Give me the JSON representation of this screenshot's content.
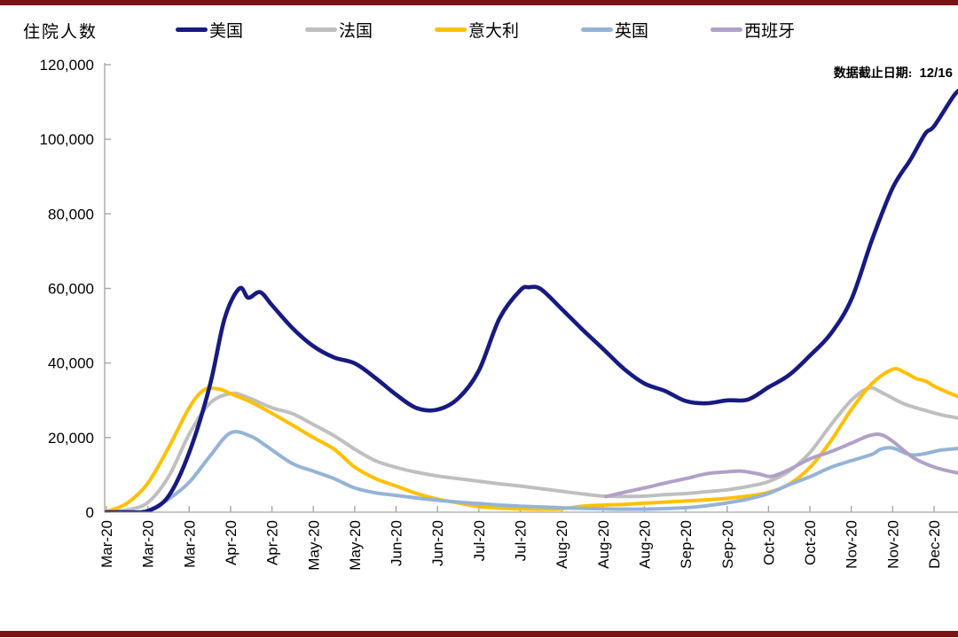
{
  "page": {
    "title": "住院人数",
    "accent_bar_color": "#7a1316"
  },
  "note": {
    "label": "数据截止日期:",
    "value": "12/16"
  },
  "colors": {
    "axis": "#b3b3b3",
    "tick": "#a6a6a6",
    "text": "#000000"
  },
  "chart_data": {
    "type": "line",
    "title": "住院人数",
    "xlabel": "",
    "ylabel": "住院人数",
    "legend_position": "top",
    "grid": false,
    "x_unit": "days since 2020-03-01, ticks every 14 days",
    "ylim": [
      0,
      120000
    ],
    "y_tick_labels": [
      "0",
      "20,000",
      "40,000",
      "60,000",
      "80,000",
      "100,000",
      "120,000"
    ],
    "x_tick_labels": [
      "Mar-20",
      "Mar-20",
      "Mar-20",
      "Apr-20",
      "Apr-20",
      "May-20",
      "May-20",
      "Jun-20",
      "Jun-20",
      "Jul-20",
      "Jul-20",
      "Aug-20",
      "Aug-20",
      "Aug-20",
      "Sep-20",
      "Sep-20",
      "Oct-20",
      "Oct-20",
      "Nov-20",
      "Nov-20",
      "Dec-20"
    ],
    "x_tick_days": [
      0,
      14,
      28,
      42,
      56,
      70,
      84,
      98,
      112,
      126,
      140,
      154,
      168,
      182,
      196,
      210,
      224,
      238,
      252,
      266,
      280
    ],
    "data_cutoff": "12/16",
    "series": [
      {
        "key": "usa",
        "name": "美国",
        "color": "#171a80",
        "points": [
          [
            0,
            0
          ],
          [
            7,
            0
          ],
          [
            14,
            300
          ],
          [
            21,
            4300
          ],
          [
            28,
            16000
          ],
          [
            35,
            34000
          ],
          [
            40,
            52000
          ],
          [
            45,
            60000
          ],
          [
            48,
            57500
          ],
          [
            52,
            59000
          ],
          [
            56,
            55500
          ],
          [
            63,
            49300
          ],
          [
            70,
            44500
          ],
          [
            77,
            41500
          ],
          [
            84,
            39900
          ],
          [
            91,
            36000
          ],
          [
            98,
            31500
          ],
          [
            105,
            27900
          ],
          [
            112,
            27500
          ],
          [
            119,
            30500
          ],
          [
            126,
            38000
          ],
          [
            133,
            52000
          ],
          [
            140,
            59500
          ],
          [
            143,
            60300
          ],
          [
            147,
            59800
          ],
          [
            154,
            54500
          ],
          [
            161,
            49000
          ],
          [
            168,
            43800
          ],
          [
            175,
            38500
          ],
          [
            182,
            34500
          ],
          [
            189,
            32500
          ],
          [
            196,
            29800
          ],
          [
            203,
            29200
          ],
          [
            210,
            30000
          ],
          [
            217,
            30200
          ],
          [
            224,
            33500
          ],
          [
            231,
            36800
          ],
          [
            238,
            42000
          ],
          [
            245,
            47800
          ],
          [
            252,
            57000
          ],
          [
            259,
            73000
          ],
          [
            266,
            87000
          ],
          [
            272,
            94500
          ],
          [
            277,
            101500
          ],
          [
            280,
            103500
          ],
          [
            287,
            112000
          ],
          [
            290,
            113500
          ]
        ]
      },
      {
        "key": "france",
        "name": "法国",
        "color": "#bfbfbf",
        "points": [
          [
            0,
            100
          ],
          [
            7,
            600
          ],
          [
            14,
            2600
          ],
          [
            21,
            9500
          ],
          [
            28,
            20900
          ],
          [
            35,
            29200
          ],
          [
            42,
            31800
          ],
          [
            47,
            31000
          ],
          [
            56,
            28000
          ],
          [
            63,
            26400
          ],
          [
            70,
            23500
          ],
          [
            77,
            20500
          ],
          [
            84,
            16900
          ],
          [
            91,
            13800
          ],
          [
            98,
            12000
          ],
          [
            105,
            10700
          ],
          [
            112,
            9700
          ],
          [
            119,
            9000
          ],
          [
            126,
            8300
          ],
          [
            133,
            7600
          ],
          [
            140,
            7000
          ],
          [
            147,
            6300
          ],
          [
            154,
            5600
          ],
          [
            161,
            4900
          ],
          [
            168,
            4300
          ],
          [
            175,
            4200
          ],
          [
            182,
            4300
          ],
          [
            189,
            4700
          ],
          [
            196,
            5000
          ],
          [
            203,
            5500
          ],
          [
            210,
            6000
          ],
          [
            217,
            6900
          ],
          [
            224,
            8200
          ],
          [
            231,
            11000
          ],
          [
            238,
            16000
          ],
          [
            245,
            23300
          ],
          [
            252,
            30000
          ],
          [
            258,
            33300
          ],
          [
            263,
            31800
          ],
          [
            270,
            29000
          ],
          [
            277,
            27300
          ],
          [
            283,
            26000
          ],
          [
            290,
            25000
          ]
        ]
      },
      {
        "key": "italy",
        "name": "意大利",
        "color": "#ffc000",
        "points": [
          [
            0,
            150
          ],
          [
            7,
            2400
          ],
          [
            14,
            7800
          ],
          [
            21,
            17300
          ],
          [
            28,
            28000
          ],
          [
            33,
            32800
          ],
          [
            38,
            33000
          ],
          [
            42,
            31800
          ],
          [
            49,
            29500
          ],
          [
            56,
            26500
          ],
          [
            63,
            23300
          ],
          [
            70,
            20000
          ],
          [
            77,
            16900
          ],
          [
            84,
            12100
          ],
          [
            91,
            9000
          ],
          [
            98,
            7000
          ],
          [
            105,
            5000
          ],
          [
            112,
            3500
          ],
          [
            119,
            2500
          ],
          [
            126,
            1500
          ],
          [
            133,
            1100
          ],
          [
            140,
            900
          ],
          [
            147,
            800
          ],
          [
            154,
            900
          ],
          [
            161,
            1600
          ],
          [
            168,
            1900
          ],
          [
            175,
            2100
          ],
          [
            182,
            2400
          ],
          [
            189,
            2700
          ],
          [
            196,
            3000
          ],
          [
            203,
            3300
          ],
          [
            210,
            3700
          ],
          [
            217,
            4300
          ],
          [
            224,
            5300
          ],
          [
            231,
            7500
          ],
          [
            238,
            12000
          ],
          [
            245,
            19000
          ],
          [
            252,
            27500
          ],
          [
            259,
            34500
          ],
          [
            266,
            38300
          ],
          [
            270,
            37500
          ],
          [
            274,
            35800
          ],
          [
            277,
            35200
          ],
          [
            280,
            33800
          ],
          [
            285,
            32000
          ],
          [
            290,
            30400
          ]
        ]
      },
      {
        "key": "uk",
        "name": "英国",
        "color": "#95b3d7",
        "points": [
          [
            0,
            0
          ],
          [
            7,
            0
          ],
          [
            14,
            500
          ],
          [
            21,
            3500
          ],
          [
            28,
            8000
          ],
          [
            35,
            15000
          ],
          [
            42,
            21300
          ],
          [
            49,
            20300
          ],
          [
            54,
            17800
          ],
          [
            63,
            13000
          ],
          [
            70,
            11000
          ],
          [
            77,
            9000
          ],
          [
            84,
            6500
          ],
          [
            91,
            5200
          ],
          [
            98,
            4500
          ],
          [
            105,
            3800
          ],
          [
            112,
            3200
          ],
          [
            119,
            2700
          ],
          [
            126,
            2300
          ],
          [
            133,
            1900
          ],
          [
            140,
            1600
          ],
          [
            147,
            1400
          ],
          [
            154,
            1200
          ],
          [
            161,
            1000
          ],
          [
            168,
            900
          ],
          [
            175,
            800
          ],
          [
            182,
            800
          ],
          [
            189,
            950
          ],
          [
            196,
            1200
          ],
          [
            203,
            1700
          ],
          [
            210,
            2500
          ],
          [
            217,
            3500
          ],
          [
            224,
            5000
          ],
          [
            231,
            7400
          ],
          [
            238,
            9500
          ],
          [
            245,
            12000
          ],
          [
            252,
            13800
          ],
          [
            259,
            15500
          ],
          [
            262,
            16900
          ],
          [
            266,
            17200
          ],
          [
            272,
            15400
          ],
          [
            277,
            15700
          ],
          [
            282,
            16600
          ],
          [
            290,
            17200
          ]
        ]
      },
      {
        "key": "spain",
        "name": "西班牙",
        "color": "#b1a0c7",
        "points": [
          [
            169,
            4200
          ],
          [
            175,
            5300
          ],
          [
            182,
            6500
          ],
          [
            189,
            7800
          ],
          [
            196,
            9000
          ],
          [
            203,
            10300
          ],
          [
            210,
            10800
          ],
          [
            215,
            11000
          ],
          [
            221,
            10200
          ],
          [
            225,
            9600
          ],
          [
            231,
            11400
          ],
          [
            238,
            14300
          ],
          [
            245,
            16200
          ],
          [
            252,
            18500
          ],
          [
            258,
            20500
          ],
          [
            262,
            20800
          ],
          [
            266,
            19000
          ],
          [
            273,
            14600
          ],
          [
            280,
            12100
          ],
          [
            287,
            10700
          ],
          [
            290,
            10400
          ]
        ]
      }
    ]
  }
}
